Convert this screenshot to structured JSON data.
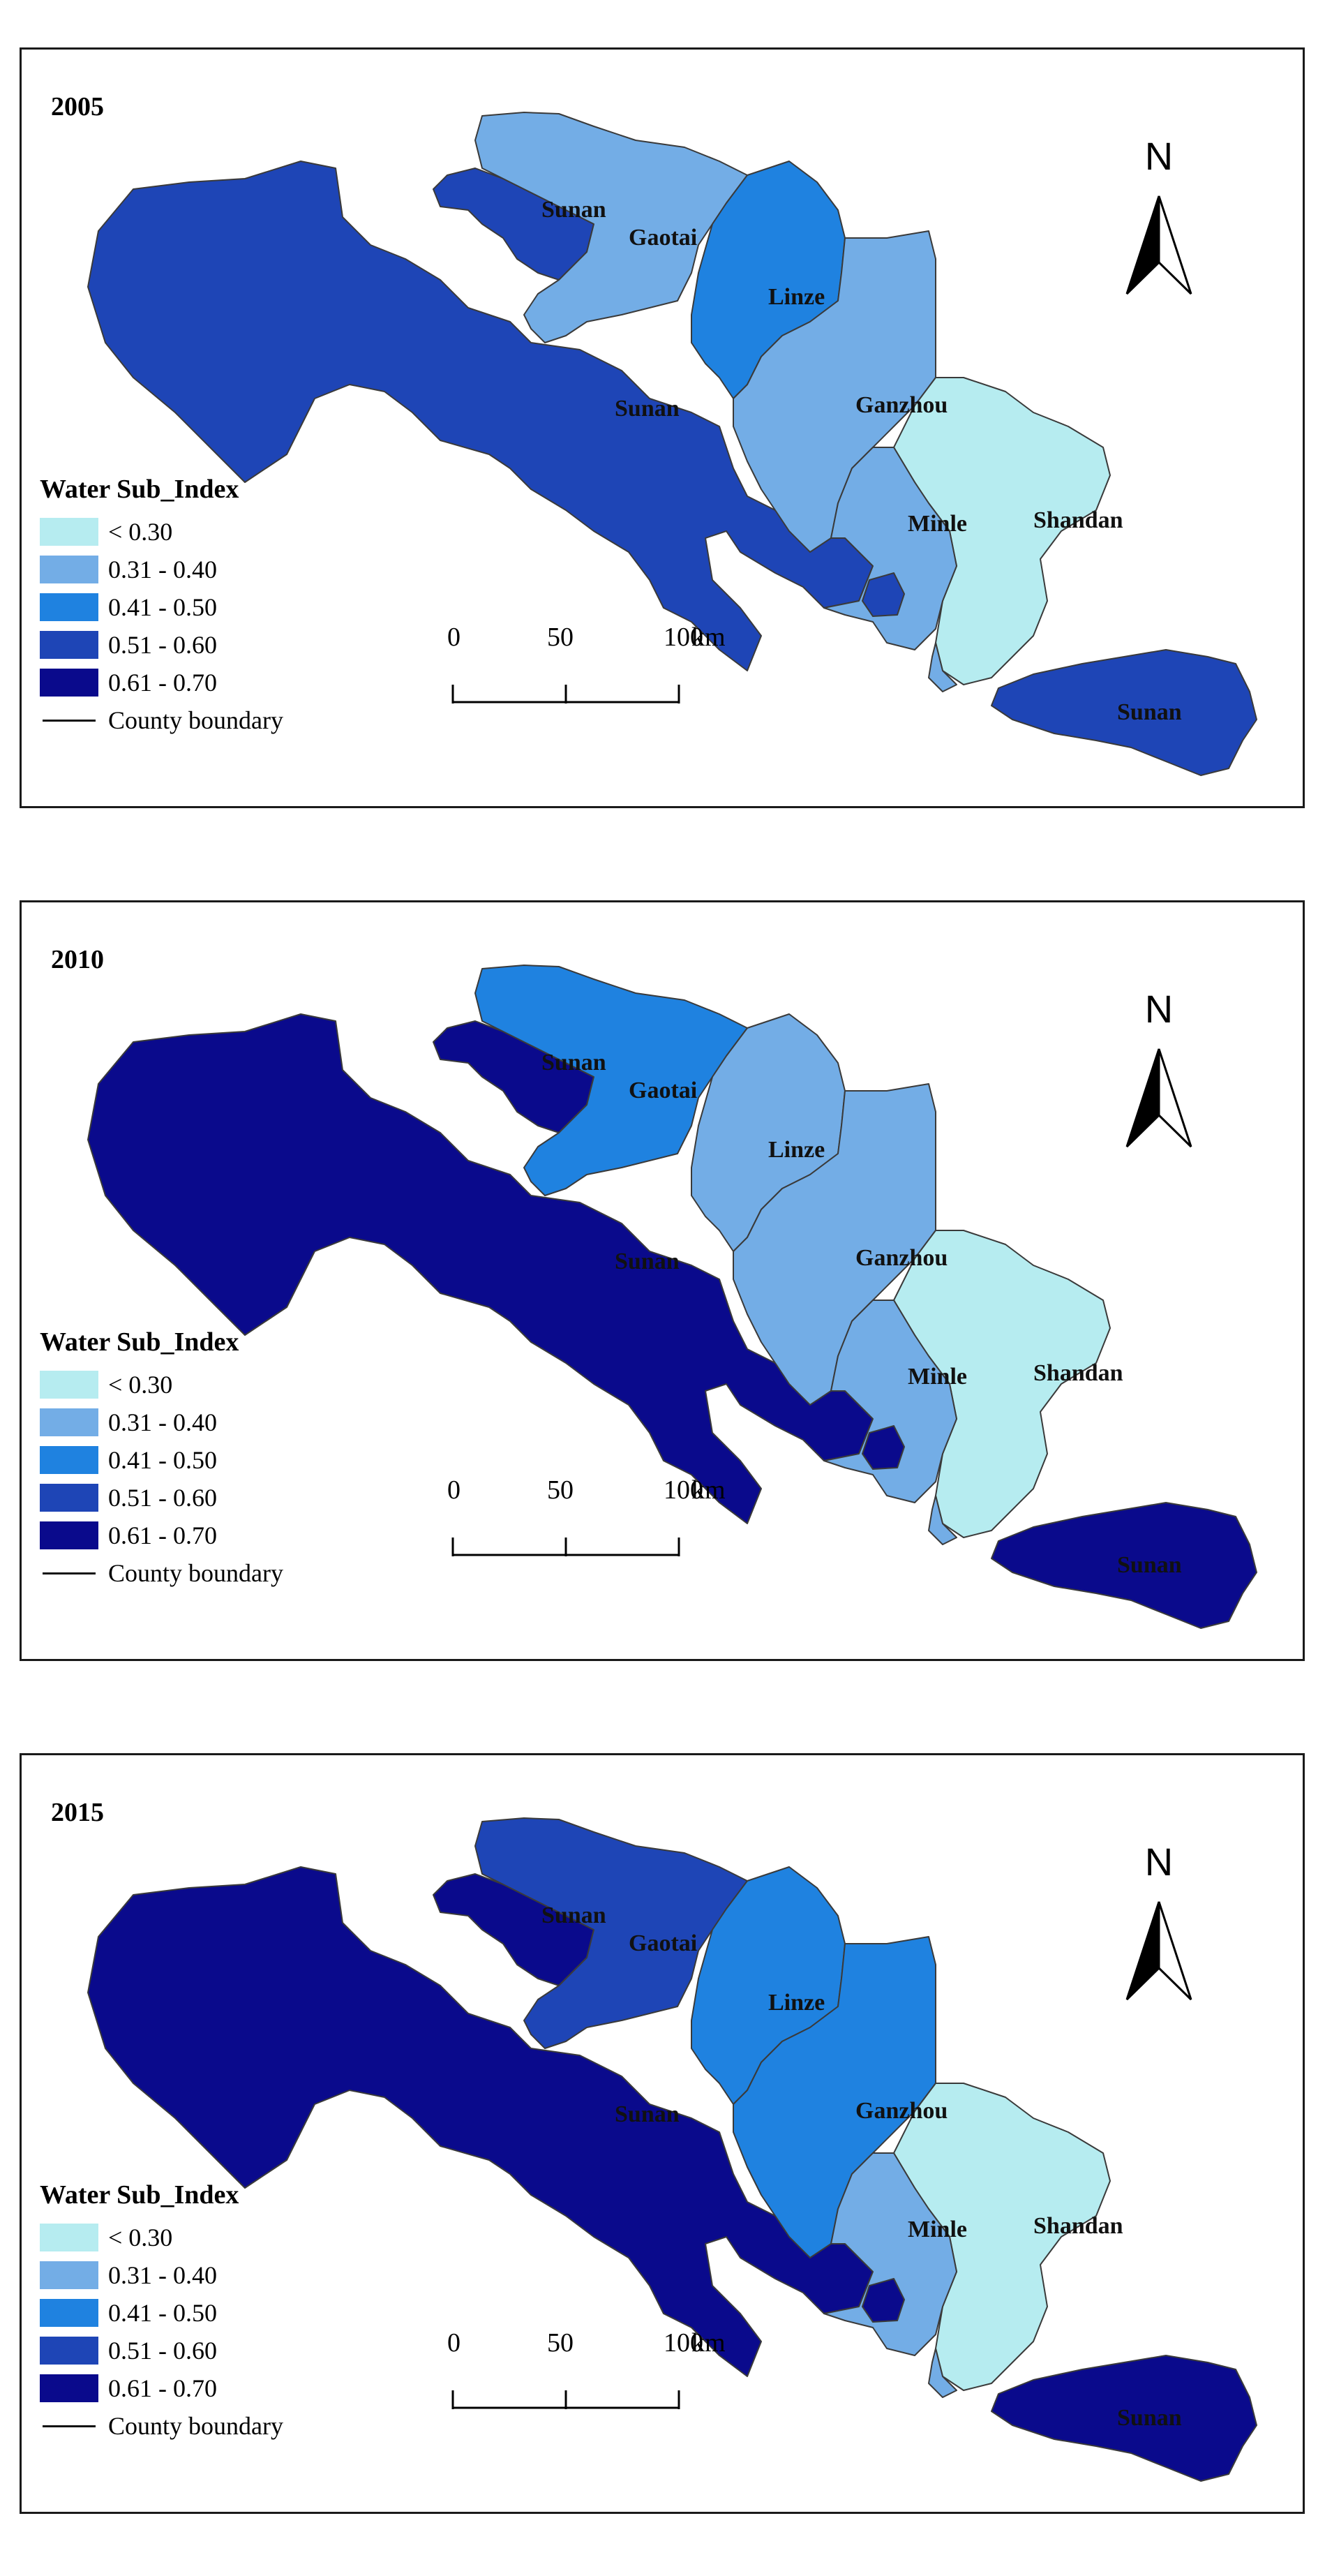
{
  "legend": {
    "title": "Water Sub_Index",
    "classes": [
      {
        "label": "< 0.30",
        "color": "#b6ecf0"
      },
      {
        "label": "0.31 - 0.40",
        "color": "#73ade6"
      },
      {
        "label": "0.41 - 0.50",
        "color": "#1f82e0"
      },
      {
        "label": "0.51 - 0.60",
        "color": "#1e45b6"
      },
      {
        "label": "0.61 - 0.70",
        "color": "#0a0a8c"
      }
    ],
    "boundary_label": "County boundary"
  },
  "north_label": "N",
  "scale": {
    "ticks": [
      "0",
      "50",
      "100"
    ],
    "unit": "km"
  },
  "counties": [
    "Sunan",
    "Gaotai",
    "Linze",
    "Ganzhou",
    "Minle",
    "Shandan"
  ],
  "panels": [
    {
      "year": "2005",
      "classes": {
        "sunan": 3,
        "gaotai": 1,
        "linze": 2,
        "ganzhou": 1,
        "minle": 1,
        "shandan": 0
      }
    },
    {
      "year": "2010",
      "classes": {
        "sunan": 4,
        "gaotai": 2,
        "linze": 1,
        "ganzhou": 1,
        "minle": 1,
        "shandan": 0
      }
    },
    {
      "year": "2015",
      "classes": {
        "sunan": 4,
        "gaotai": 3,
        "linze": 2,
        "ganzhou": 2,
        "minle": 1,
        "shandan": 0
      }
    }
  ]
}
